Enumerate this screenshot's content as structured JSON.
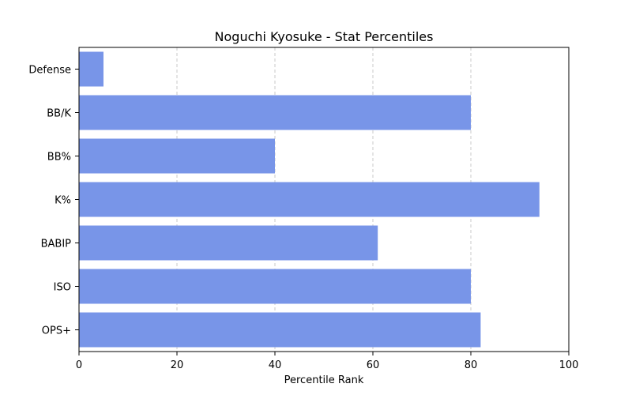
{
  "chart_data": {
    "type": "bar",
    "orientation": "horizontal",
    "title": "Noguchi Kyosuke - Stat Percentiles",
    "xlabel": "Percentile Rank",
    "ylabel": "",
    "xlim": [
      0,
      100
    ],
    "xticks": [
      "0",
      "20",
      "40",
      "60",
      "80",
      "100"
    ],
    "categories": [
      "OPS+",
      "ISO",
      "BABIP",
      "K%",
      "BB%",
      "BB/K",
      "Defense"
    ],
    "values": [
      82,
      80,
      61,
      94,
      40,
      80,
      5
    ],
    "bar_color": "#7895e8",
    "grid": "x-dashed"
  }
}
